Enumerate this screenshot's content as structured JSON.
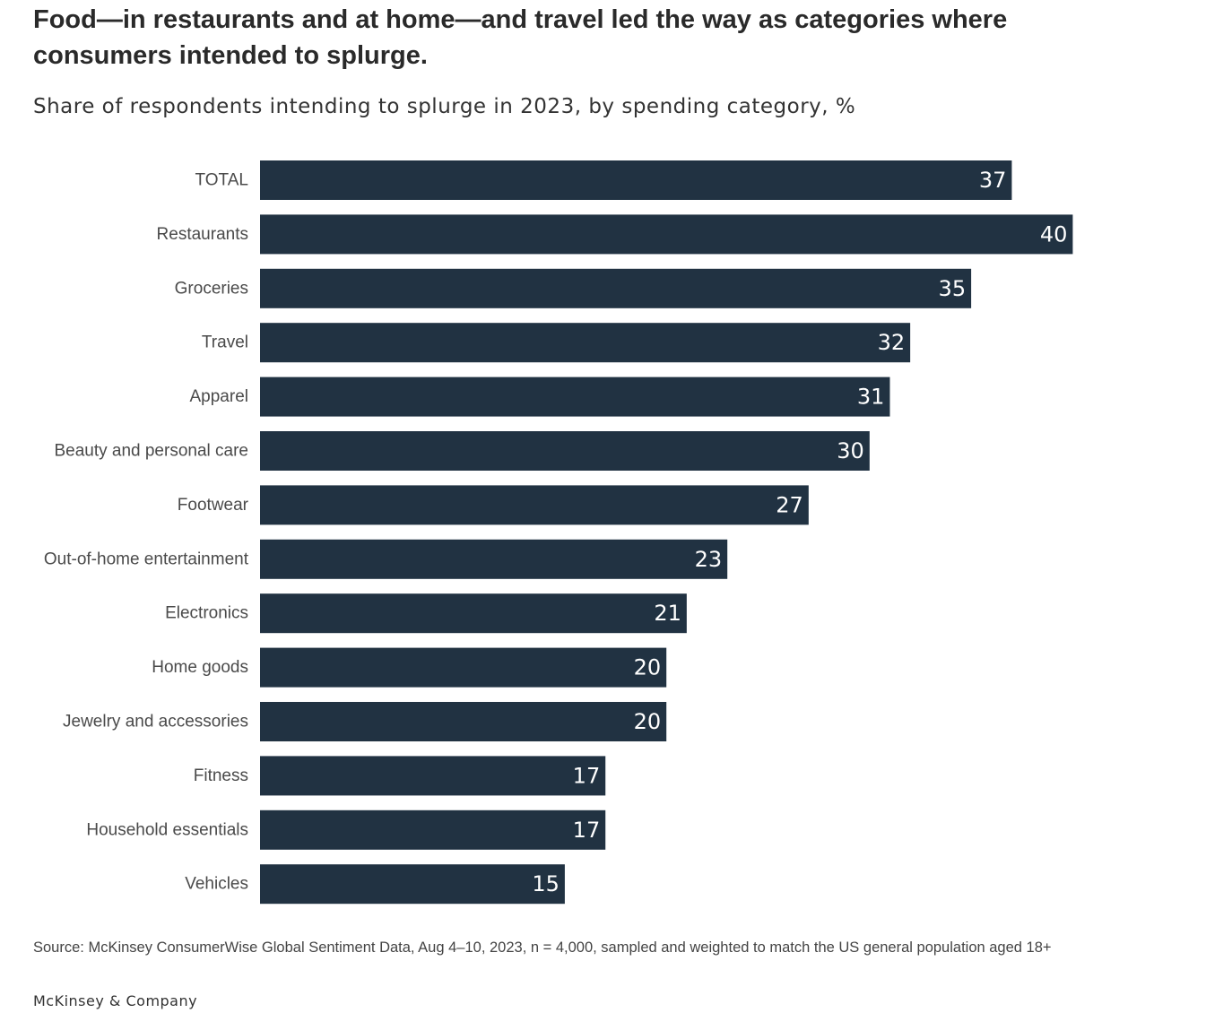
{
  "headline": "Food—in restaurants and at home—and travel led the way as categories where consumers intended to splurge.",
  "subtitle": "Share of respondents intending to splurge in 2023, by spending category, %",
  "source": "Source: McKinsey ConsumerWise Global Sentiment Data, Aug 4–10, 2023, n = 4,000, sampled and weighted to match the US general population aged 18+",
  "brand": "McKinsey & Company",
  "colors": {
    "bar": "#213242",
    "bar_label": "#ffffff",
    "category_label": "#4a4a4a"
  },
  "chart_data": {
    "type": "bar",
    "orientation": "horizontal",
    "title": "Share of respondents intending to splurge in 2023, by spending category, %",
    "categories": [
      "TOTAL",
      "Restaurants",
      "Groceries",
      "Travel",
      "Apparel",
      "Beauty and personal care",
      "Footwear",
      "Out-of-home entertainment",
      "Electronics",
      "Home goods",
      "Jewelry and accessories",
      "Fitness",
      "Household essentials",
      "Vehicles"
    ],
    "values": [
      37,
      40,
      35,
      32,
      31,
      30,
      27,
      23,
      21,
      20,
      20,
      17,
      17,
      15
    ],
    "xlim": [
      0,
      40
    ],
    "grid": false,
    "legend": "none",
    "data_labels": "inside-end"
  }
}
